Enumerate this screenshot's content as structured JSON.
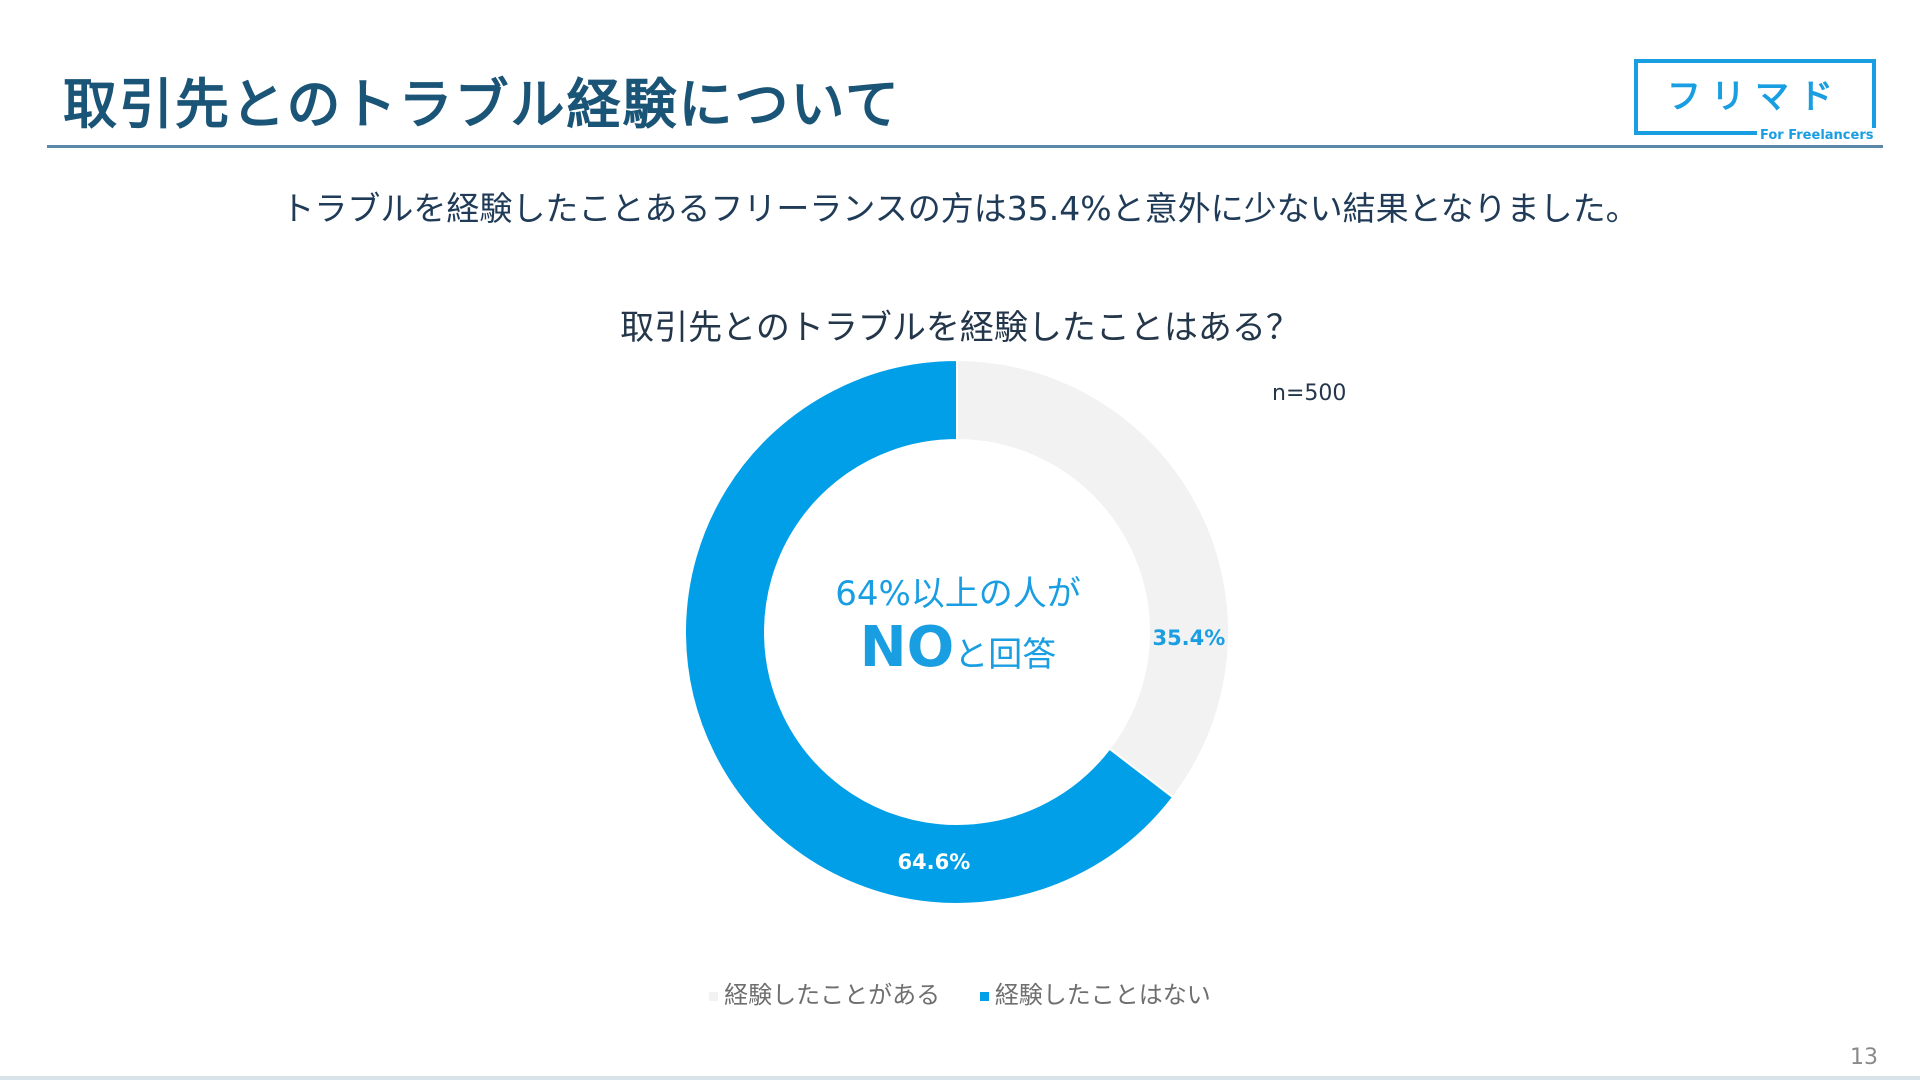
{
  "header": {
    "title": "取引先とのトラブル経験について",
    "logo_text": "フリマド",
    "logo_subtext": "For Freelancers"
  },
  "summary": "トラブルを経験したことあるフリーランスの方は35.4%と意外に少ない結果となりました。",
  "center_text": {
    "line1": "64%以上の人が",
    "strong": "NO",
    "rest": "と回答"
  },
  "page_number": "13",
  "colors": {
    "accent": "#1a9ee2",
    "title": "#1a5477",
    "no_segment": "#019fe8",
    "yes_segment": "#f2f2f2"
  },
  "chart_data": {
    "type": "pie",
    "variant": "donut",
    "title": "取引先とのトラブルを経験したことはある？",
    "note": "n=500",
    "categories": [
      "経験したことがある",
      "経験したことはない"
    ],
    "values": [
      35.4,
      64.6
    ],
    "labels": [
      "35.4%",
      "64.6%"
    ],
    "colors": [
      "#f2f2f2",
      "#019fe8"
    ],
    "label_colors": [
      "#1a9ee2",
      "#ffffff"
    ],
    "start_angle_deg": 0,
    "direction": "clockwise",
    "legend_position": "bottom"
  }
}
